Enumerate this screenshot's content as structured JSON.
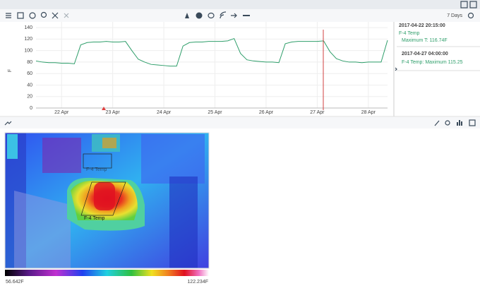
{
  "toolbar": {
    "range": "7 Days"
  },
  "chart_data": {
    "type": "line",
    "y_label": "F",
    "color": "#2e9e6a",
    "categories": [
      null,
      null,
      null,
      null,
      "22 Apr",
      null,
      null,
      null,
      null,
      null,
      null,
      null,
      "23 Apr",
      null,
      null,
      null,
      null,
      null,
      null,
      null,
      "24 Apr",
      null,
      null,
      null,
      null,
      null,
      null,
      null,
      "25 Apr",
      null,
      null,
      null,
      null,
      null,
      null,
      null,
      "26 Apr",
      null,
      null,
      null,
      null,
      null,
      null,
      null,
      "27 Apr",
      null,
      null,
      null,
      null,
      null,
      null,
      null,
      "28 Apr",
      null,
      null,
      null
    ],
    "values": [
      82,
      80,
      79,
      79,
      78,
      78,
      77,
      110,
      114,
      115,
      115,
      116,
      115,
      115,
      116,
      100,
      85,
      80,
      76,
      75,
      74,
      73,
      73,
      108,
      114,
      115,
      115,
      116,
      116,
      116,
      117,
      121,
      95,
      84,
      82,
      81,
      80,
      80,
      79,
      112,
      115,
      116,
      116,
      116,
      116,
      117,
      98,
      86,
      82,
      80,
      80,
      79,
      80,
      80,
      80,
      118
    ],
    "ylim": [
      0,
      150
    ],
    "yticks": [
      0,
      20,
      40,
      60,
      80,
      100,
      120,
      140
    ],
    "grid": true
  },
  "panel": {
    "entries": [
      {
        "time": "2017-04-22 20:15:00",
        "label": "F-4 Temp",
        "detail": "Maximum T: 116.74F"
      },
      {
        "time": "2017-04-27 04:00:00",
        "label": "F-4 Temp: Maximum 115.25"
      }
    ]
  },
  "thermal": {
    "region_labels": [
      "F-4 Temp",
      "F-4 Temp"
    ],
    "scale_min": "56.642F",
    "scale_max": "122.234F"
  }
}
